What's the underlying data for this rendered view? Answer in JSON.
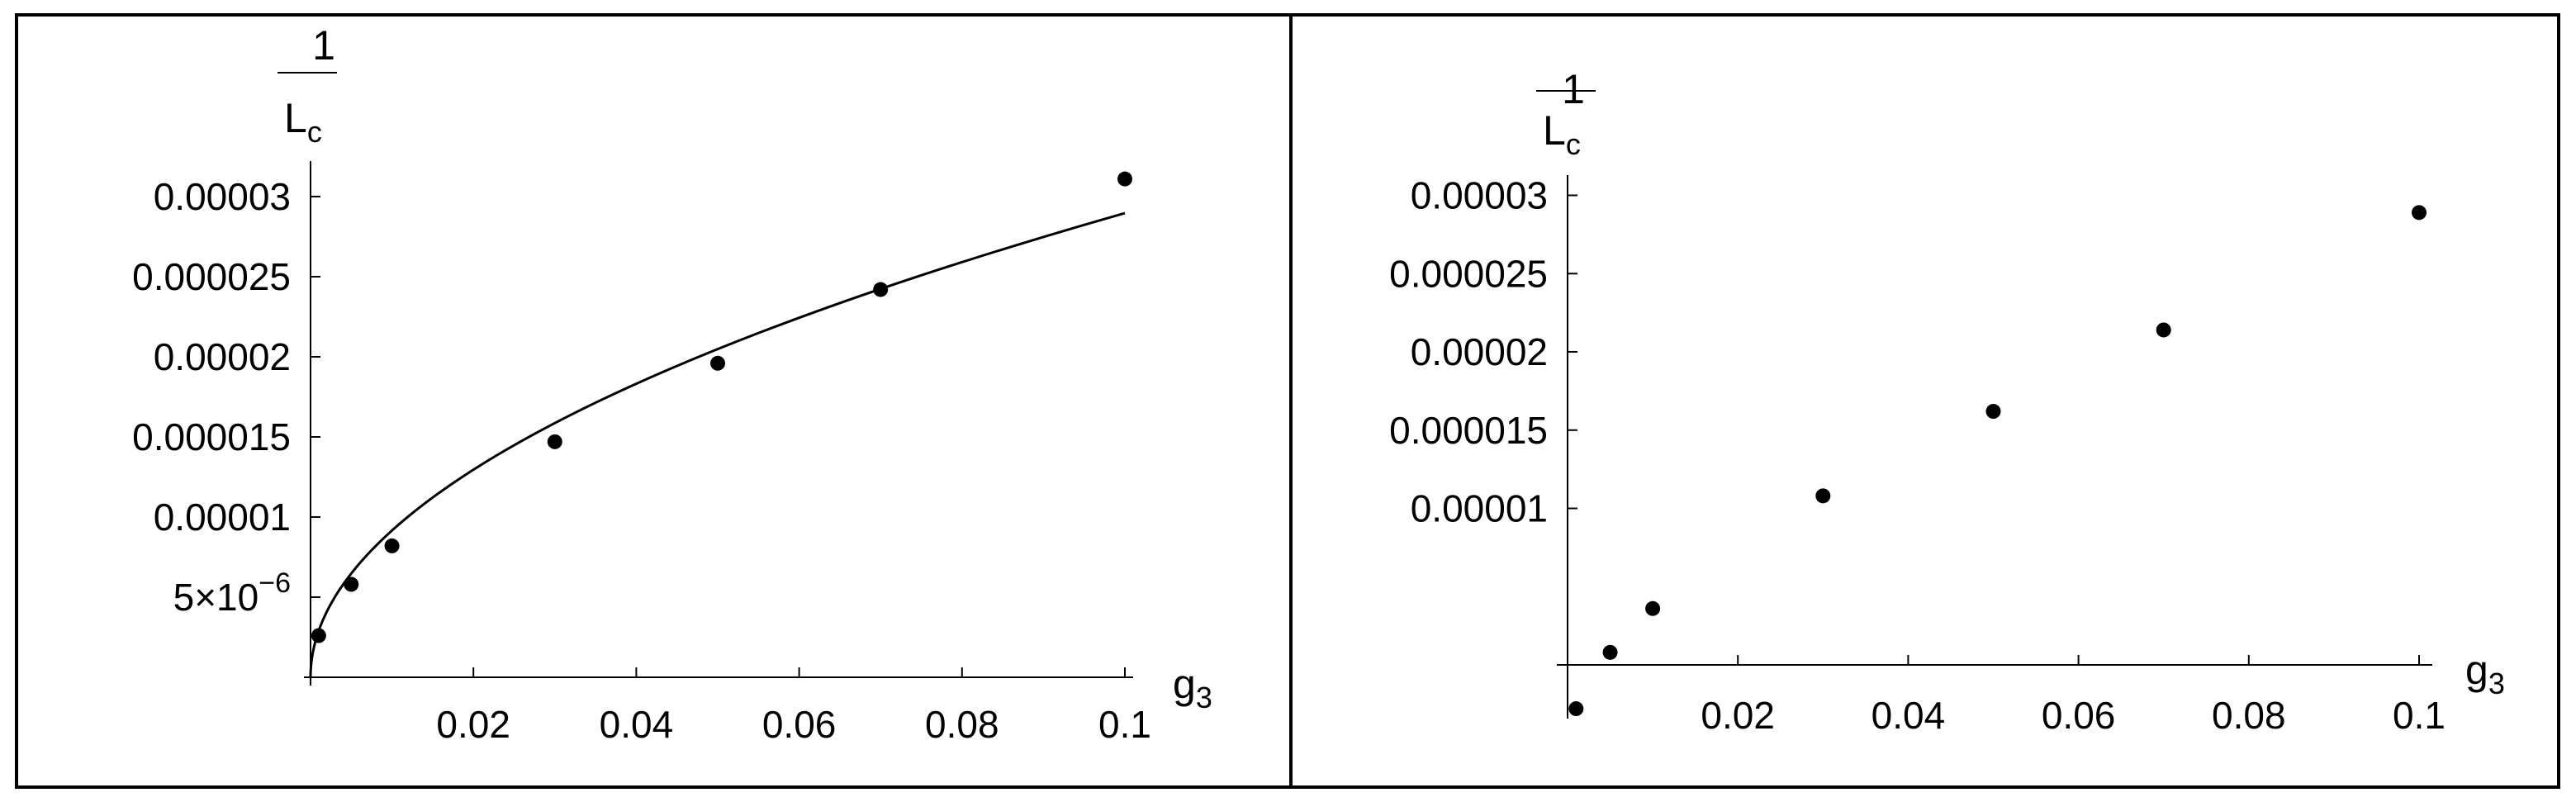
{
  "chart_data": [
    {
      "type": "scatter",
      "panel": "left",
      "xlabel": "g",
      "xlabel_sub": "3",
      "ylabel_numerator": "1",
      "ylabel_denominator": "L",
      "ylabel_denominator_sub": "c",
      "xlim": [
        0,
        0.1
      ],
      "ylim": [
        0,
        3e-05
      ],
      "x_ticks": [
        {
          "value": 0.02,
          "label": "0.02"
        },
        {
          "value": 0.04,
          "label": "0.04"
        },
        {
          "value": 0.06,
          "label": "0.06"
        },
        {
          "value": 0.08,
          "label": "0.08"
        },
        {
          "value": 0.1,
          "label": "0.1"
        }
      ],
      "y_ticks": [
        {
          "value": 5e-06,
          "label": "5×10",
          "exp": "−6"
        },
        {
          "value": 1e-05,
          "label": "0.00001"
        },
        {
          "value": 1.5e-05,
          "label": "0.000015"
        },
        {
          "value": 2e-05,
          "label": "0.00002"
        },
        {
          "value": 2.5e-05,
          "label": "0.000025"
        },
        {
          "value": 3e-05,
          "label": "0.00003"
        }
      ],
      "points": [
        {
          "x": 0.001,
          "y": 2.6e-06
        },
        {
          "x": 0.005,
          "y": 5.8e-06
        },
        {
          "x": 0.01,
          "y": 8.2e-06
        },
        {
          "x": 0.03,
          "y": 1.47e-05
        },
        {
          "x": 0.05,
          "y": 1.96e-05
        },
        {
          "x": 0.07,
          "y": 2.42e-05
        },
        {
          "x": 0.1,
          "y": 3.11e-05
        }
      ],
      "fit_curve": {
        "form": "a*sqrt(x)",
        "a": 9.16e-05
      }
    },
    {
      "type": "scatter",
      "panel": "right",
      "xlabel": "g",
      "xlabel_sub": "3",
      "ylabel_numerator": "1",
      "ylabel_denominator": "L",
      "ylabel_denominator_sub": "c",
      "xlim": [
        0,
        0.1
      ],
      "ylim": [
        -3e-06,
        3e-05
      ],
      "x_ticks": [
        {
          "value": 0.02,
          "label": "0.02"
        },
        {
          "value": 0.04,
          "label": "0.04"
        },
        {
          "value": 0.06,
          "label": "0.06"
        },
        {
          "value": 0.08,
          "label": "0.08"
        },
        {
          "value": 0.1,
          "label": "0.1"
        }
      ],
      "y_ticks": [
        {
          "value": 1e-05,
          "label": "0.00001"
        },
        {
          "value": 1.5e-05,
          "label": "0.000015"
        },
        {
          "value": 2e-05,
          "label": "0.00002"
        },
        {
          "value": 2.5e-05,
          "label": "0.000025"
        },
        {
          "value": 3e-05,
          "label": "0.00003"
        }
      ],
      "points": [
        {
          "x": 0.001,
          "y": -2.8e-06
        },
        {
          "x": 0.005,
          "y": 8e-07
        },
        {
          "x": 0.01,
          "y": 3.6e-06
        },
        {
          "x": 0.03,
          "y": 1.08e-05
        },
        {
          "x": 0.05,
          "y": 1.62e-05
        },
        {
          "x": 0.07,
          "y": 2.14e-05
        },
        {
          "x": 0.1,
          "y": 2.89e-05
        }
      ]
    }
  ]
}
